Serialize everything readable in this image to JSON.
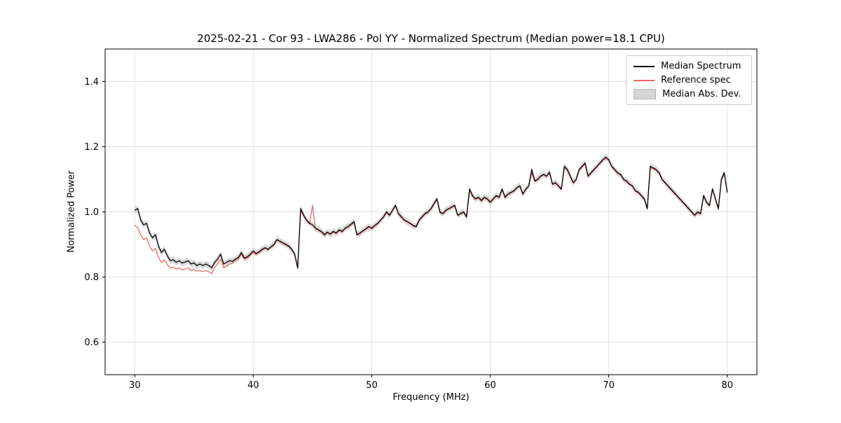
{
  "figure": {
    "title": "2025-02-21 - Cor 93 - LWA286 - Pol YY - Normalized Spectrum (Median power=18.1 CPU)",
    "xlabel": "Frequency (MHz)",
    "ylabel": "Normalized Power"
  },
  "legend": {
    "items": [
      {
        "label": "Median Spectrum",
        "type": "line",
        "color": "#000000"
      },
      {
        "label": "Reference spec",
        "type": "line",
        "color": "#ee6666"
      },
      {
        "label": "Median Abs. Dev.",
        "type": "patch",
        "color": "#d5d5d5",
        "edge": "#b5b5b5"
      }
    ]
  },
  "chart_data": {
    "type": "line",
    "title": "2025-02-21 - Cor 93 - LWA286 - Pol YY - Normalized Spectrum (Median power=18.1 CPU)",
    "xlabel": "Frequency (MHz)",
    "ylabel": "Normalized Power",
    "xlim": [
      27.5,
      82.5
    ],
    "ylim": [
      0.5,
      1.5
    ],
    "xticks": [
      30,
      40,
      50,
      60,
      70,
      80
    ],
    "yticks": [
      0.6,
      0.8,
      1.0,
      1.2,
      1.4
    ],
    "grid": true,
    "legend_position": "upper right",
    "x_start": 30.0,
    "x_step": 0.25,
    "band": {
      "name": "Median Abs. Dev.",
      "around": "Median Spectrum",
      "halfwidth": 0.01,
      "color": "#bbbbbb",
      "opacity": 0.55
    },
    "series": [
      {
        "name": "Median Spectrum",
        "color": "#000000",
        "width": 1.3,
        "values": [
          1.005,
          1.01,
          0.975,
          0.96,
          0.965,
          0.935,
          0.92,
          0.93,
          0.895,
          0.875,
          0.885,
          0.865,
          0.85,
          0.853,
          0.845,
          0.85,
          0.843,
          0.846,
          0.85,
          0.84,
          0.843,
          0.835,
          0.84,
          0.835,
          0.84,
          0.835,
          0.828,
          0.845,
          0.855,
          0.87,
          0.84,
          0.845,
          0.85,
          0.848,
          0.855,
          0.86,
          0.875,
          0.858,
          0.862,
          0.87,
          0.88,
          0.872,
          0.878,
          0.885,
          0.89,
          0.885,
          0.893,
          0.9,
          0.915,
          0.91,
          0.905,
          0.9,
          0.895,
          0.885,
          0.87,
          0.828,
          1.01,
          0.99,
          0.975,
          0.965,
          0.96,
          0.95,
          0.945,
          0.94,
          0.93,
          0.938,
          0.932,
          0.94,
          0.935,
          0.945,
          0.94,
          0.95,
          0.955,
          0.962,
          0.97,
          0.93,
          0.935,
          0.942,
          0.948,
          0.955,
          0.95,
          0.958,
          0.965,
          0.975,
          0.985,
          1.0,
          0.99,
          1.005,
          1.02,
          0.995,
          0.985,
          0.975,
          0.97,
          0.965,
          0.958,
          0.955,
          0.975,
          0.985,
          0.995,
          1.0,
          1.01,
          1.025,
          1.04,
          1.0,
          0.995,
          1.005,
          1.01,
          1.015,
          1.02,
          0.99,
          0.995,
          1.0,
          0.985,
          1.07,
          1.05,
          1.04,
          1.045,
          1.035,
          1.045,
          1.04,
          1.03,
          1.04,
          1.05,
          1.045,
          1.07,
          1.045,
          1.055,
          1.06,
          1.065,
          1.075,
          1.08,
          1.055,
          1.07,
          1.08,
          1.13,
          1.095,
          1.1,
          1.11,
          1.115,
          1.11,
          1.12,
          1.085,
          1.09,
          1.08,
          1.07,
          1.14,
          1.13,
          1.11,
          1.09,
          1.1,
          1.13,
          1.14,
          1.15,
          1.11,
          1.12,
          1.13,
          1.14,
          1.15,
          1.16,
          1.168,
          1.16,
          1.14,
          1.13,
          1.12,
          1.115,
          1.1,
          1.095,
          1.085,
          1.08,
          1.065,
          1.06,
          1.05,
          1.04,
          1.01,
          1.14,
          1.135,
          1.13,
          1.12,
          1.1,
          1.09,
          1.08,
          1.07,
          1.06,
          1.05,
          1.04,
          1.03,
          1.02,
          1.01,
          1.0,
          0.99,
          1.0,
          0.995,
          1.05,
          1.03,
          1.02,
          1.07,
          1.04,
          1.01,
          1.1,
          1.12,
          1.06
        ]
      },
      {
        "name": "Reference spec",
        "color": "#ee6666",
        "width": 1.3,
        "values": [
          0.96,
          0.95,
          0.93,
          0.915,
          0.92,
          0.895,
          0.88,
          0.888,
          0.86,
          0.845,
          0.852,
          0.838,
          0.828,
          0.83,
          0.824,
          0.828,
          0.822,
          0.824,
          0.828,
          0.82,
          0.822,
          0.818,
          0.82,
          0.816,
          0.82,
          0.816,
          0.81,
          0.83,
          0.84,
          0.855,
          0.828,
          0.833,
          0.84,
          0.843,
          0.85,
          0.856,
          0.87,
          0.854,
          0.858,
          0.866,
          0.876,
          0.869,
          0.875,
          0.882,
          0.888,
          0.883,
          0.891,
          0.898,
          0.913,
          0.908,
          0.903,
          0.898,
          0.893,
          0.883,
          0.868,
          0.826,
          1.005,
          0.987,
          0.972,
          0.962,
          1.02,
          0.948,
          0.943,
          0.938,
          0.928,
          0.936,
          0.93,
          0.938,
          0.933,
          0.943,
          0.938,
          0.948,
          0.953,
          0.96,
          0.968,
          0.928,
          0.933,
          0.94,
          0.946,
          0.953,
          0.948,
          0.956,
          0.963,
          0.973,
          0.983,
          0.998,
          0.988,
          1.003,
          1.018,
          0.993,
          0.983,
          0.973,
          0.968,
          0.963,
          0.956,
          0.953,
          0.973,
          0.983,
          0.993,
          0.998,
          1.008,
          1.023,
          1.038,
          0.998,
          0.993,
          1.003,
          1.008,
          1.013,
          1.018,
          0.988,
          0.993,
          0.998,
          0.983,
          1.065,
          1.048,
          1.038,
          1.043,
          1.033,
          1.043,
          1.038,
          1.028,
          1.038,
          1.048,
          1.043,
          1.068,
          1.043,
          1.053,
          1.058,
          1.063,
          1.073,
          1.078,
          1.053,
          1.068,
          1.078,
          1.12,
          1.093,
          1.098,
          1.108,
          1.113,
          1.108,
          1.125,
          1.083,
          1.088,
          1.078,
          1.068,
          1.135,
          1.128,
          1.108,
          1.088,
          1.098,
          1.128,
          1.138,
          1.148,
          1.108,
          1.118,
          1.128,
          1.138,
          1.148,
          1.158,
          1.165,
          1.158,
          1.138,
          1.128,
          1.118,
          1.113,
          1.098,
          1.093,
          1.083,
          1.078,
          1.063,
          1.058,
          1.048,
          1.038,
          1.008,
          1.135,
          1.132,
          1.128,
          1.118,
          1.098,
          1.088,
          1.078,
          1.068,
          1.058,
          1.048,
          1.038,
          1.028,
          1.018,
          1.008,
          0.998,
          0.988,
          0.998,
          0.993,
          1.048,
          1.028,
          1.018,
          1.068,
          1.038,
          1.008,
          1.098,
          1.118,
          1.058
        ]
      }
    ]
  }
}
